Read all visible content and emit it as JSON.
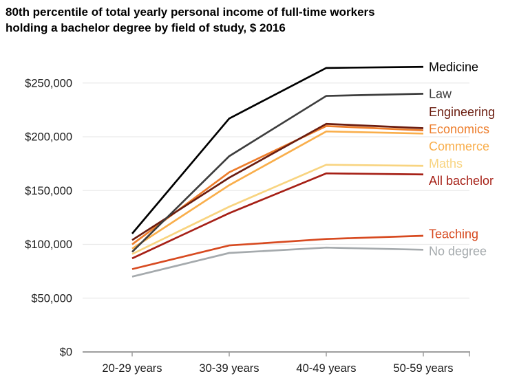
{
  "title": {
    "line1": "80th percentile of total yearly personal income of full-time workers",
    "line2": "holding a bachelor degree by field of study, $ 2016"
  },
  "chart_data": {
    "type": "line",
    "title": "80th percentile of total yearly personal income of full-time workers holding a bachelor degree by field of study, $ 2016",
    "xlabel": "",
    "ylabel": "",
    "grid": "horizontal",
    "legend_position": "right-end-labels",
    "categories": [
      "20-29 years",
      "30-39 years",
      "40-49 years",
      "50-59 years"
    ],
    "ylim": [
      0,
      250000
    ],
    "y_ticks": [
      {
        "value": 0,
        "label": "$0"
      },
      {
        "value": 50000,
        "label": "$50,000"
      },
      {
        "value": 100000,
        "label": "$100,000"
      },
      {
        "value": 150000,
        "label": "$150,000"
      },
      {
        "value": 200000,
        "label": "$200,000"
      },
      {
        "value": 250000,
        "label": "$250,000"
      }
    ],
    "series": [
      {
        "name": "Medicine",
        "color": "#000000",
        "values": [
          110000,
          217000,
          264000,
          265000
        ]
      },
      {
        "name": "Law",
        "color": "#3d3d3d",
        "values": [
          93000,
          182000,
          238000,
          240000
        ]
      },
      {
        "name": "Engineering",
        "color": "#6b1d10",
        "values": [
          104000,
          162000,
          212000,
          208000
        ]
      },
      {
        "name": "Economics",
        "color": "#ed7d2b",
        "values": [
          100000,
          167000,
          210000,
          206000
        ]
      },
      {
        "name": "Commerce",
        "color": "#f9ae4b",
        "values": [
          96000,
          155000,
          205000,
          203000
        ]
      },
      {
        "name": "Maths",
        "color": "#f8d480",
        "values": [
          91000,
          135000,
          174000,
          173000
        ]
      },
      {
        "name": "All bachelor",
        "color": "#a62016",
        "values": [
          87000,
          129000,
          166000,
          165000
        ]
      },
      {
        "name": "Teaching",
        "color": "#d74a20",
        "values": [
          77000,
          99000,
          105000,
          108000
        ]
      },
      {
        "name": "No degree",
        "color": "#a5aaad",
        "values": [
          70000,
          92000,
          97000,
          95000
        ]
      }
    ]
  },
  "colors": {
    "background": "#ffffff",
    "grid": "#e9e9e9",
    "axis": "#9e9e9e",
    "text": "#1a1a1a"
  }
}
